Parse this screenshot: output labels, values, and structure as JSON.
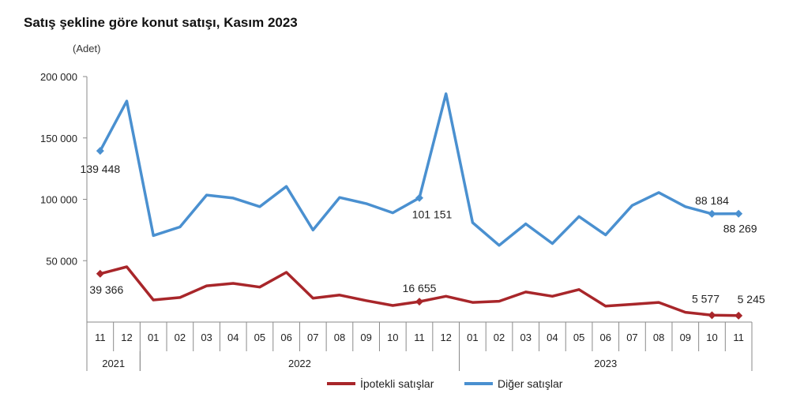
{
  "title": "Satış şekline göre konut satışı, Kasım 2023",
  "unit": "(Adet)",
  "legend": {
    "s0": "İpotekli satışlar",
    "s1": "Diğer satışlar"
  },
  "colors": {
    "ipotekli": "#a8262a",
    "diger": "#4a90d0",
    "axis": "#8a8a8a"
  },
  "chart_data": {
    "type": "line",
    "ylim": [
      0,
      200000
    ],
    "yticks": [
      {
        "value": 50000,
        "label": "50 000"
      },
      {
        "value": 100000,
        "label": "100 000"
      },
      {
        "value": 150000,
        "label": "150 000"
      },
      {
        "value": 200000,
        "label": "200 000"
      }
    ],
    "categories": [
      "11",
      "12",
      "01",
      "02",
      "03",
      "04",
      "05",
      "06",
      "07",
      "08",
      "09",
      "10",
      "11",
      "12",
      "01",
      "02",
      "03",
      "04",
      "05",
      "06",
      "07",
      "08",
      "09",
      "10",
      "11"
    ],
    "years": [
      {
        "label": "2021",
        "start": 0,
        "end": 1
      },
      {
        "label": "2022",
        "start": 2,
        "end": 13
      },
      {
        "label": "2023",
        "start": 14,
        "end": 24
      }
    ],
    "series": [
      {
        "name": "İpotekli satışlar",
        "values": [
          39366,
          45000,
          18000,
          20000,
          29500,
          31500,
          28500,
          40500,
          19500,
          22000,
          17500,
          13500,
          16655,
          21000,
          16000,
          17000,
          24500,
          21000,
          26500,
          13000,
          14500,
          16000,
          8000,
          5577,
          5245
        ],
        "markers": [
          0,
          12,
          23,
          24
        ]
      },
      {
        "name": "Diğer satışlar",
        "values": [
          139448,
          180000,
          70500,
          77500,
          103500,
          101000,
          94000,
          110500,
          75000,
          101500,
          96500,
          89000,
          101151,
          186000,
          81000,
          62500,
          80000,
          64000,
          86000,
          71000,
          95000,
          105500,
          94000,
          88184,
          88269
        ],
        "markers": [
          0,
          12,
          23,
          24
        ]
      }
    ],
    "labels": [
      {
        "series": 1,
        "index": 0,
        "text": "139 448"
      },
      {
        "series": 1,
        "index": 12,
        "text": "101 151"
      },
      {
        "series": 1,
        "index": 23,
        "text": "88 184"
      },
      {
        "series": 1,
        "index": 24,
        "text": "88 269"
      },
      {
        "series": 0,
        "index": 0,
        "text": "39 366"
      },
      {
        "series": 0,
        "index": 12,
        "text": "16 655"
      },
      {
        "series": 0,
        "index": 23,
        "text": "5 577"
      },
      {
        "series": 0,
        "index": 24,
        "text": "5 245"
      }
    ]
  }
}
